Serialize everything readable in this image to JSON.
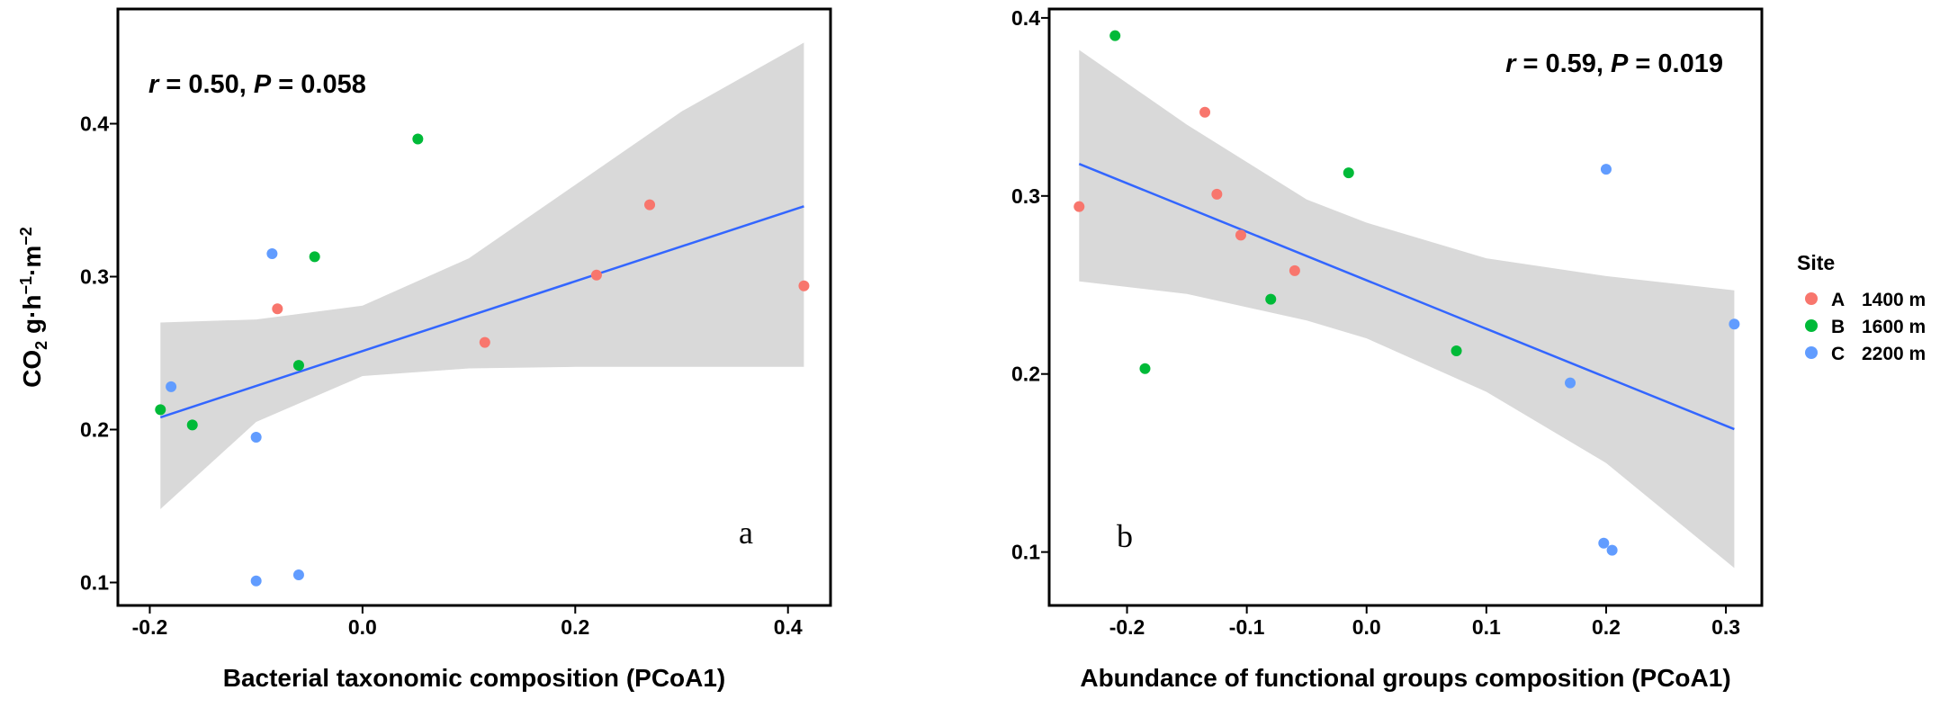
{
  "chart_data": [
    {
      "type": "scatter",
      "panel_label": "a",
      "title": "",
      "xlabel": "Bacterial taxonomic composition (PCoA1)",
      "ylabel": "CO₂ g·h⁻¹·m⁻²",
      "ylabel_parts": {
        "main": "CO",
        "sub": "2",
        "rest": " g·h",
        "sup1": "−1",
        "mid": "·m",
        "sup2": "−2"
      },
      "stat": {
        "r_symbol": "r",
        "r_text": " = 0.50, ",
        "p_symbol": "P",
        "p_text": " = 0.058"
      },
      "xlim": [
        -0.23,
        0.44
      ],
      "ylim": [
        0.085,
        0.475
      ],
      "xticks": [
        "-0.2",
        "0.0",
        "0.2",
        "0.4"
      ],
      "yticks": [
        "0.1",
        "0.2",
        "0.3",
        "0.4"
      ],
      "grid": false,
      "series": [
        {
          "name": "A",
          "color": "#F8766D",
          "points": [
            [
              -0.08,
              0.279
            ],
            [
              0.115,
              0.257
            ],
            [
              0.22,
              0.301
            ],
            [
              0.27,
              0.347
            ],
            [
              0.415,
              0.294
            ]
          ]
        },
        {
          "name": "B",
          "color": "#00BA38",
          "points": [
            [
              -0.19,
              0.213
            ],
            [
              -0.16,
              0.203
            ],
            [
              -0.06,
              0.242
            ],
            [
              -0.045,
              0.313
            ],
            [
              0.052,
              0.39
            ]
          ]
        },
        {
          "name": "C",
          "color": "#619CFF",
          "points": [
            [
              -0.18,
              0.228
            ],
            [
              -0.1,
              0.195
            ],
            [
              -0.085,
              0.315
            ],
            [
              -0.1,
              0.101
            ],
            [
              -0.06,
              0.105
            ]
          ]
        }
      ],
      "fit": {
        "color": "#3366FF",
        "line": [
          [
            -0.19,
            0.208
          ],
          [
            0.415,
            0.346
          ]
        ],
        "band": [
          [
            -0.19,
            0.148,
            0.27
          ],
          [
            -0.1,
            0.205,
            0.272
          ],
          [
            0.0,
            0.235,
            0.281
          ],
          [
            0.1,
            0.24,
            0.312
          ],
          [
            0.2,
            0.241,
            0.36
          ],
          [
            0.3,
            0.241,
            0.408
          ],
          [
            0.415,
            0.241,
            0.453
          ]
        ]
      }
    },
    {
      "type": "scatter",
      "panel_label": "b",
      "title": "",
      "xlabel": "Abundance of functional groups composition (PCoA1)",
      "stat": {
        "r_symbol": "r",
        "r_text": " = 0.59, ",
        "p_symbol": "P",
        "p_text": " = 0.019"
      },
      "xlim": [
        -0.265,
        0.33
      ],
      "ylim": [
        0.07,
        0.405
      ],
      "xticks": [
        "-0.2",
        "-0.1",
        "0.0",
        "0.1",
        "0.2",
        "0.3"
      ],
      "yticks": [
        "0.1",
        "0.2",
        "0.3",
        "0.4"
      ],
      "grid": false,
      "series": [
        {
          "name": "A",
          "color": "#F8766D",
          "points": [
            [
              -0.24,
              0.294
            ],
            [
              -0.135,
              0.347
            ],
            [
              -0.125,
              0.301
            ],
            [
              -0.105,
              0.278
            ],
            [
              -0.06,
              0.258
            ]
          ]
        },
        {
          "name": "B",
          "color": "#00BA38",
          "points": [
            [
              -0.21,
              0.39
            ],
            [
              -0.185,
              0.203
            ],
            [
              -0.08,
              0.242
            ],
            [
              -0.015,
              0.313
            ],
            [
              0.075,
              0.213
            ]
          ]
        },
        {
          "name": "C",
          "color": "#619CFF",
          "points": [
            [
              0.2,
              0.315
            ],
            [
              0.307,
              0.228
            ],
            [
              0.17,
              0.195
            ],
            [
              0.198,
              0.105
            ],
            [
              0.205,
              0.101
            ]
          ]
        }
      ],
      "fit": {
        "color": "#3366FF",
        "line": [
          [
            -0.24,
            0.318
          ],
          [
            0.307,
            0.169
          ]
        ],
        "band": [
          [
            -0.24,
            0.252,
            0.382
          ],
          [
            -0.15,
            0.245,
            0.34
          ],
          [
            -0.05,
            0.23,
            0.298
          ],
          [
            0.0,
            0.22,
            0.285
          ],
          [
            0.1,
            0.19,
            0.265
          ],
          [
            0.2,
            0.15,
            0.255
          ],
          [
            0.307,
            0.091,
            0.247
          ]
        ]
      }
    }
  ],
  "legend": {
    "title": "Site",
    "placement": "right",
    "items": [
      {
        "key": "A",
        "label": "1400 m",
        "color": "#F8766D"
      },
      {
        "key": "B",
        "label": "1600 m",
        "color": "#00BA38"
      },
      {
        "key": "C",
        "label": "2200 m",
        "color": "#619CFF"
      }
    ]
  }
}
